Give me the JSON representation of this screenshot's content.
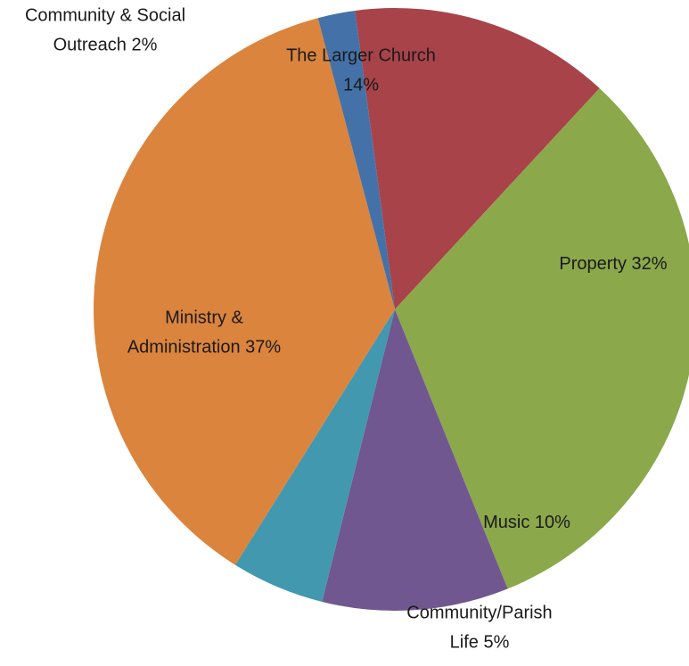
{
  "chart_data": {
    "type": "pie",
    "title": "",
    "slices": [
      {
        "label_lines": [
          "The Larger Church",
          "14%"
        ],
        "value": 14,
        "color": "#A8434A"
      },
      {
        "label_lines": [
          "Property 32%"
        ],
        "value": 32,
        "color": "#8BA84B"
      },
      {
        "label_lines": [
          "Music 10%"
        ],
        "value": 10,
        "color": "#71578F"
      },
      {
        "label_lines": [
          "Community/Parish",
          "Life 5%"
        ],
        "value": 5,
        "color": "#4298AF"
      },
      {
        "label_lines": [
          "Ministry &",
          "Administration 37%"
        ],
        "value": 37,
        "color": "#DB843D"
      },
      {
        "label_lines": [
          "Community & Social",
          "Outreach 2%"
        ],
        "value": 2,
        "color": "#4472A8"
      }
    ]
  }
}
